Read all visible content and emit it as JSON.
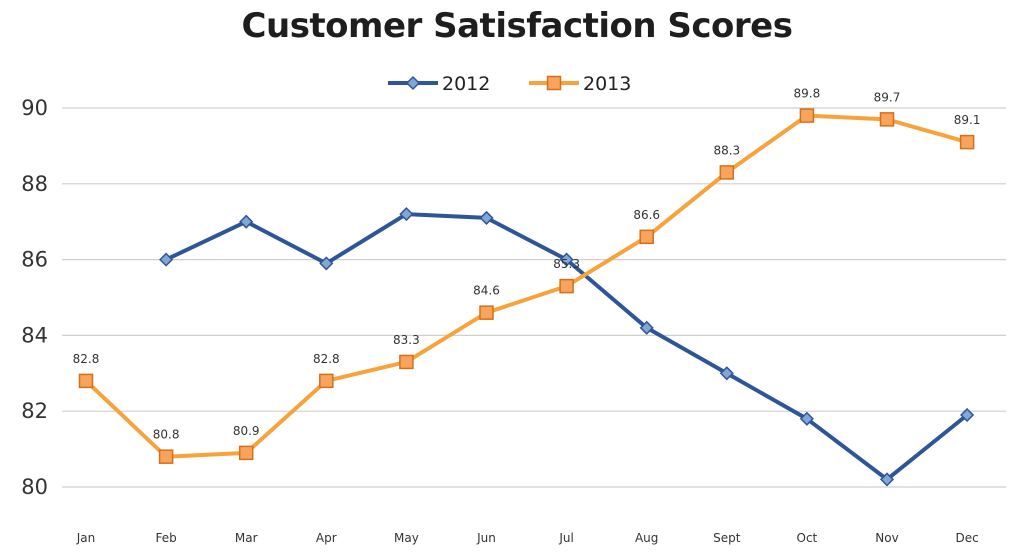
{
  "chart_data": {
    "type": "line",
    "title": "Customer Satisfaction Scores",
    "xlabel": "",
    "ylabel": "",
    "categories": [
      "Jan",
      "Feb",
      "Mar",
      "Apr",
      "May",
      "Jun",
      "Jul",
      "Aug",
      "Sept",
      "Oct",
      "Nov",
      "Dec"
    ],
    "ylim": [
      80,
      90
    ],
    "yticks": [
      "80",
      "82",
      "84",
      "86",
      "88",
      "90"
    ],
    "grid": true,
    "legend": "top-center",
    "series": [
      {
        "name": "2012",
        "color": "#2e5597",
        "marker": "diamond",
        "values": [
          null,
          86.0,
          87.0,
          85.9,
          87.2,
          87.1,
          86.0,
          84.2,
          83.0,
          81.8,
          80.2,
          81.9
        ],
        "labels": []
      },
      {
        "name": "2013",
        "color": "#f7a23b",
        "marker": "square",
        "values": [
          82.8,
          80.8,
          80.9,
          82.8,
          83.3,
          84.6,
          85.3,
          86.6,
          88.3,
          89.8,
          89.7,
          89.1
        ],
        "labels": [
          "82.8",
          "80.8",
          "80.9",
          "82.8",
          "83.3",
          "84.6",
          "85.3",
          "86.6",
          "88.3",
          "89.8",
          "89.7",
          "89.1"
        ]
      }
    ]
  }
}
